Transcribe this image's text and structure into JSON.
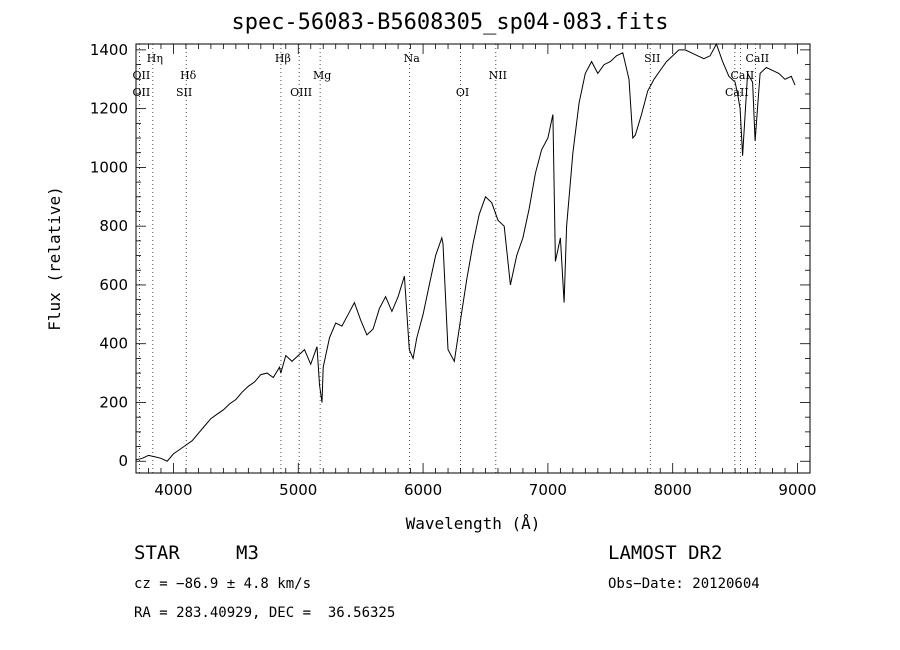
{
  "chart_data": {
    "type": "line",
    "title": "spec-56083-B5608305_sp04-083.fits",
    "xlabel": "Wavelength (Å)",
    "ylabel": "Flux (relative)",
    "xlim": [
      3700,
      9100
    ],
    "ylim": [
      -40,
      1420
    ],
    "xticks": [
      4000,
      5000,
      6000,
      7000,
      8000,
      9000
    ],
    "yticks": [
      0,
      200,
      400,
      600,
      800,
      1000,
      1200,
      1400
    ],
    "grid": false,
    "series": [
      {
        "x": [
          3700,
          3750,
          3800,
          3850,
          3900,
          3950,
          4000,
          4050,
          4100,
          4150,
          4200,
          4250,
          4300,
          4350,
          4400,
          4450,
          4500,
          4550,
          4600,
          4650,
          4700,
          4750,
          4800,
          4850,
          4860,
          4880,
          4900,
          4950,
          5000,
          5050,
          5100,
          5150,
          5170,
          5190,
          5200,
          5250,
          5300,
          5350,
          5400,
          5450,
          5500,
          5550,
          5600,
          5650,
          5700,
          5750,
          5800,
          5850,
          5890,
          5920,
          5950,
          6000,
          6050,
          6100,
          6150,
          6160,
          6200,
          6250,
          6300,
          6350,
          6400,
          6450,
          6500,
          6550,
          6600,
          6650,
          6700,
          6750,
          6800,
          6850,
          6900,
          6950,
          7000,
          7040,
          7060,
          7100,
          7130,
          7150,
          7200,
          7250,
          7300,
          7350,
          7400,
          7450,
          7500,
          7550,
          7600,
          7650,
          7680,
          7700,
          7750,
          7800,
          7850,
          7900,
          7950,
          8000,
          8050,
          8100,
          8150,
          8200,
          8250,
          8300,
          8350,
          8400,
          8450,
          8500,
          8520,
          8540,
          8560,
          8600,
          8640,
          8660,
          8700,
          8750,
          8800,
          8850,
          8900,
          8950,
          8980
        ],
        "y": [
          5,
          10,
          20,
          15,
          10,
          0,
          25,
          40,
          55,
          70,
          95,
          120,
          145,
          160,
          175,
          195,
          210,
          235,
          255,
          270,
          295,
          300,
          285,
          320,
          300,
          330,
          360,
          340,
          360,
          380,
          330,
          390,
          260,
          200,
          320,
          420,
          470,
          460,
          500,
          540,
          480,
          430,
          450,
          520,
          560,
          510,
          560,
          630,
          380,
          350,
          420,
          500,
          600,
          700,
          760,
          740,
          380,
          340,
          480,
          620,
          740,
          840,
          900,
          880,
          820,
          800,
          600,
          700,
          760,
          860,
          980,
          1060,
          1100,
          1180,
          680,
          760,
          540,
          800,
          1050,
          1220,
          1320,
          1360,
          1320,
          1350,
          1360,
          1380,
          1390,
          1300,
          1100,
          1110,
          1180,
          1260,
          1300,
          1330,
          1360,
          1380,
          1400,
          1400,
          1390,
          1380,
          1370,
          1380,
          1420,
          1360,
          1310,
          1290,
          1250,
          1200,
          1040,
          1320,
          1290,
          1090,
          1320,
          1340,
          1330,
          1320,
          1300,
          1310,
          1280
        ]
      }
    ],
    "lines": [
      {
        "label": "Hη",
        "x": 3835,
        "row": 0
      },
      {
        "label": "OII",
        "x": 3727,
        "row": 1
      },
      {
        "label": "OII",
        "x": 3727,
        "row": 2
      },
      {
        "label": "Hδ",
        "x": 4102,
        "row": 1
      },
      {
        "label": "SII",
        "x": 4069,
        "row": 2
      },
      {
        "label": "Hβ",
        "x": 4861,
        "row": 0
      },
      {
        "label": "Mg",
        "x": 5175,
        "row": 1
      },
      {
        "label": "OIII",
        "x": 5007,
        "row": 2
      },
      {
        "label": "Na",
        "x": 5893,
        "row": 0
      },
      {
        "label": "OI",
        "x": 6300,
        "row": 2
      },
      {
        "label": "NII",
        "x": 6583,
        "row": 1
      },
      {
        "label": "SII",
        "x": 7820,
        "row": 0
      },
      {
        "label": "CaII",
        "x": 8662,
        "row": 0
      },
      {
        "label": "CaII",
        "x": 8542,
        "row": 1
      },
      {
        "label": "CaII",
        "x": 8498,
        "row": 2
      }
    ],
    "line_marker_x": [
      3727,
      3835,
      4102,
      4861,
      5007,
      5175,
      5893,
      6300,
      6583,
      7820,
      8498,
      8542,
      8662
    ]
  },
  "info": {
    "object_type": "STAR",
    "subclass": "M3",
    "survey": "LAMOST DR2",
    "cz": "cz = −86.9 ± 4.8 km/s",
    "obs_date": "Obs−Date: 20120604",
    "coords": "RA = 283.40929, DEC =  36.56325"
  }
}
